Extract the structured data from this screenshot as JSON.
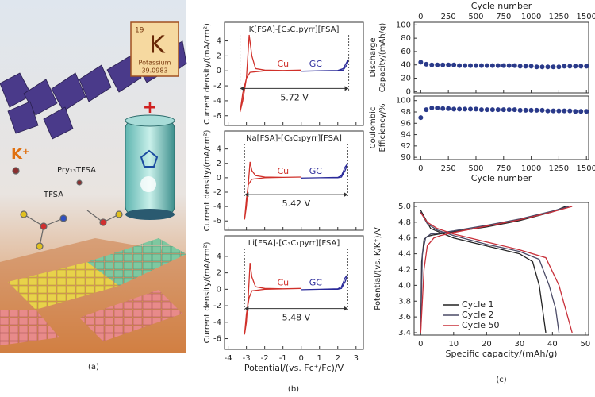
{
  "illustration": {
    "element": {
      "number": "19",
      "symbol": "K",
      "name": "Potassium",
      "mass": "39.0983"
    },
    "labels": [
      "K⁺",
      "Pry₁₃TFSA",
      "TFSA"
    ],
    "caption": "(a)"
  },
  "captions": {
    "b": "(b)",
    "c": "(c)"
  },
  "chart_data": [
    {
      "type": "line",
      "title": "K[FSA]-[C₃C₁pyrr][FSA]",
      "ylabel": [
        "Current density/(mA/cm²)"
      ],
      "annotation": "5.72 V",
      "xlim": [
        -4.2,
        3.4
      ],
      "xticks": [
        -4,
        -3,
        -2,
        -1,
        0,
        1,
        2,
        3
      ],
      "xtick_labels": false,
      "ylim": [
        -7.3,
        6.5
      ],
      "yticks": [
        4,
        2,
        0,
        -2,
        -4,
        -6
      ],
      "series": [
        {
          "name": "Cu",
          "color": "#d0302a",
          "x": [
            0,
            -1,
            -2,
            -2.8,
            -3.0,
            -3.2,
            -3.35,
            -3.2,
            -3.0,
            -2.85,
            -2.7,
            -2.5,
            -2,
            -1,
            0
          ],
          "values": [
            0.1,
            0.05,
            0,
            -0.2,
            -1,
            -3,
            -5.5,
            -4,
            -1,
            4.8,
            2,
            0.3,
            0.1,
            0.05,
            0.1
          ]
        },
        {
          "name": "GC",
          "color": "#2a2a9a",
          "x": [
            0,
            1,
            2,
            2.3,
            2.5,
            2.6,
            2.5,
            2.3,
            2,
            1,
            0
          ],
          "values": [
            -0.05,
            0,
            0,
            0.1,
            0.8,
            1.5,
            1.2,
            0.3,
            0.05,
            0,
            -0.05
          ]
        }
      ]
    },
    {
      "type": "line",
      "title": "Na[FSA]-[C₃C₁pyrr][FSA]",
      "ylabel": [
        "Current density/(mA/cm²)"
      ],
      "annotation": "5.42 V",
      "xlim": [
        -4.2,
        3.4
      ],
      "xticks": [
        -4,
        -3,
        -2,
        -1,
        0,
        1,
        2,
        3
      ],
      "xtick_labels": false,
      "ylim": [
        -7.3,
        6.5
      ],
      "yticks": [
        4,
        2,
        0,
        -2,
        -4,
        -6
      ],
      "series": [
        {
          "name": "Cu",
          "color": "#d0302a",
          "x": [
            0,
            -1,
            -2,
            -2.7,
            -2.9,
            -3.0,
            -3.1,
            -3.0,
            -2.9,
            -2.8,
            -2.7,
            -2.5,
            -2,
            -1,
            0
          ],
          "values": [
            0.1,
            0.05,
            0,
            -0.2,
            -1,
            -3,
            -5.8,
            -4,
            -1,
            2.2,
            1,
            0.3,
            0.1,
            0.05,
            0.1
          ]
        },
        {
          "name": "GC",
          "color": "#2a2a9a",
          "x": [
            0,
            1,
            2,
            2.2,
            2.4,
            2.55,
            2.4,
            2.2,
            2,
            1,
            0
          ],
          "values": [
            -0.05,
            0,
            0,
            0.1,
            1,
            2,
            1.5,
            0.3,
            0.05,
            0,
            -0.05
          ]
        }
      ]
    },
    {
      "type": "line",
      "title": "Li[FSA]-[C₃C₁pyrr][FSA]",
      "ylabel": [
        "Current density/(mA/cm²)"
      ],
      "xlabel": "Potential/(vs. Fc⁺/Fc)/V",
      "annotation": "5.48 V",
      "xlim": [
        -4.2,
        3.4
      ],
      "xticks": [
        -4,
        -3,
        -2,
        -1,
        0,
        1,
        2,
        3
      ],
      "xtick_labels": true,
      "ylim": [
        -7.3,
        6.5
      ],
      "yticks": [
        4,
        2,
        0,
        -2,
        -4,
        -6
      ],
      "series": [
        {
          "name": "Cu",
          "color": "#d0302a",
          "x": [
            0,
            -1,
            -2,
            -2.7,
            -2.85,
            -3.0,
            -3.1,
            -3.0,
            -2.9,
            -2.8,
            -2.7,
            -2.5,
            -2,
            -1,
            0
          ],
          "values": [
            0.1,
            0.05,
            0,
            -0.2,
            -1,
            -3,
            -5.5,
            -4,
            -1,
            3.2,
            1.5,
            0.3,
            0.1,
            0.05,
            0.1
          ]
        },
        {
          "name": "GC",
          "color": "#2a2a9a",
          "x": [
            0,
            1,
            2,
            2.2,
            2.4,
            2.55,
            2.4,
            2.2,
            2,
            1,
            0
          ],
          "values": [
            -0.05,
            0,
            0,
            0.1,
            0.9,
            1.8,
            1.4,
            0.3,
            0.05,
            0,
            -0.05
          ]
        }
      ]
    },
    {
      "type": "scatter",
      "xlabel": "Cycle number",
      "xaxis_position": "top",
      "ylabel": [
        "Discharge",
        "Capacity/(mAh/g)"
      ],
      "xlim": [
        -60,
        1520
      ],
      "xticks": [
        0,
        250,
        500,
        750,
        1000,
        1250,
        1500
      ],
      "ylim": [
        -2,
        104
      ],
      "yticks": [
        0,
        20,
        40,
        60,
        80,
        100
      ],
      "series": [
        {
          "color": "#2a3a8a",
          "x": [
            0,
            50,
            100,
            150,
            200,
            250,
            300,
            350,
            400,
            450,
            500,
            550,
            600,
            650,
            700,
            750,
            800,
            850,
            900,
            950,
            1000,
            1050,
            1100,
            1150,
            1200,
            1250,
            1300,
            1350,
            1400,
            1450,
            1500
          ],
          "values": [
            44,
            41,
            40,
            40,
            40,
            40,
            40,
            39,
            39,
            39,
            39,
            39,
            39,
            39,
            39,
            39,
            39,
            39,
            38,
            38,
            38,
            37,
            37,
            37,
            37,
            37,
            38,
            38,
            38,
            38,
            38
          ]
        }
      ]
    },
    {
      "type": "scatter",
      "xlabel": "Cycle number",
      "xaxis_position": "bottom",
      "ylabel": [
        "Coulombic",
        "Efficiency/%"
      ],
      "xlim": [
        -60,
        1520
      ],
      "xticks": [
        0,
        250,
        500,
        750,
        1000,
        1250,
        1500
      ],
      "ylim": [
        89.6,
        100.8
      ],
      "yticks": [
        90,
        92,
        94,
        96,
        98,
        100
      ],
      "series": [
        {
          "color": "#2a3a8a",
          "x": [
            0,
            50,
            100,
            150,
            200,
            250,
            300,
            350,
            400,
            450,
            500,
            550,
            600,
            650,
            700,
            750,
            800,
            850,
            900,
            950,
            1000,
            1050,
            1100,
            1150,
            1200,
            1250,
            1300,
            1350,
            1400,
            1450,
            1500
          ],
          "values": [
            97.0,
            98.4,
            98.7,
            98.7,
            98.6,
            98.6,
            98.5,
            98.5,
            98.5,
            98.5,
            98.5,
            98.4,
            98.4,
            98.4,
            98.4,
            98.4,
            98.4,
            98.4,
            98.3,
            98.3,
            98.3,
            98.3,
            98.3,
            98.2,
            98.2,
            98.2,
            98.2,
            98.2,
            98.1,
            98.1,
            98.1
          ]
        }
      ]
    },
    {
      "type": "line",
      "xlabel": "Specific capacity/(mAh/g)",
      "ylabel": [
        "Potential/(vs. K/K⁺)/V"
      ],
      "legend": "lower left",
      "xlim": [
        -2,
        51
      ],
      "xticks": [
        0,
        10,
        20,
        30,
        40,
        50
      ],
      "xtick_labels": true,
      "ylim": [
        3.37,
        5.05
      ],
      "yticks": [
        3.4,
        3.6,
        3.8,
        {
          "value": 4,
          "label": "4.0"
        },
        4.2,
        4.4,
        4.6,
        4.8,
        {
          "value": 5,
          "label": "5.0"
        }
      ],
      "series": [
        {
          "name": "Cycle 1",
          "color": "#222222",
          "x": [
            0,
            0.3,
            1,
            2,
            4,
            10,
            20,
            30,
            40,
            44,
            null,
            0,
            2,
            3,
            10,
            20,
            30,
            34,
            36,
            37,
            38
          ],
          "values": [
            3.4,
            4.3,
            4.58,
            4.62,
            4.64,
            4.68,
            4.74,
            4.82,
            4.93,
            5.0,
            null,
            4.95,
            4.8,
            4.72,
            4.6,
            4.5,
            4.4,
            4.3,
            4.0,
            3.7,
            3.4
          ]
        },
        {
          "name": "Cycle 2",
          "color": "#4a4a66",
          "x": [
            0,
            0.5,
            1.5,
            3,
            5,
            10,
            20,
            30,
            40,
            45,
            null,
            0,
            2,
            5,
            10,
            20,
            30,
            36,
            39,
            41,
            42
          ],
          "values": [
            3.4,
            4.4,
            4.6,
            4.65,
            4.66,
            4.69,
            4.76,
            4.84,
            4.94,
            5.0,
            null,
            4.93,
            4.78,
            4.7,
            4.63,
            4.52,
            4.43,
            4.33,
            4.0,
            3.7,
            3.4
          ]
        },
        {
          "name": "Cycle 50",
          "color": "#c8303a",
          "x": [
            0,
            1,
            2,
            4,
            6,
            10,
            20,
            30,
            40,
            46,
            null,
            0,
            2,
            5,
            10,
            20,
            30,
            38,
            42,
            44,
            46
          ],
          "values": [
            3.4,
            4.2,
            4.5,
            4.6,
            4.63,
            4.67,
            4.75,
            4.83,
            4.93,
            5.0,
            null,
            4.92,
            4.8,
            4.72,
            4.65,
            4.55,
            4.45,
            4.35,
            4.0,
            3.7,
            3.4
          ]
        }
      ]
    }
  ]
}
